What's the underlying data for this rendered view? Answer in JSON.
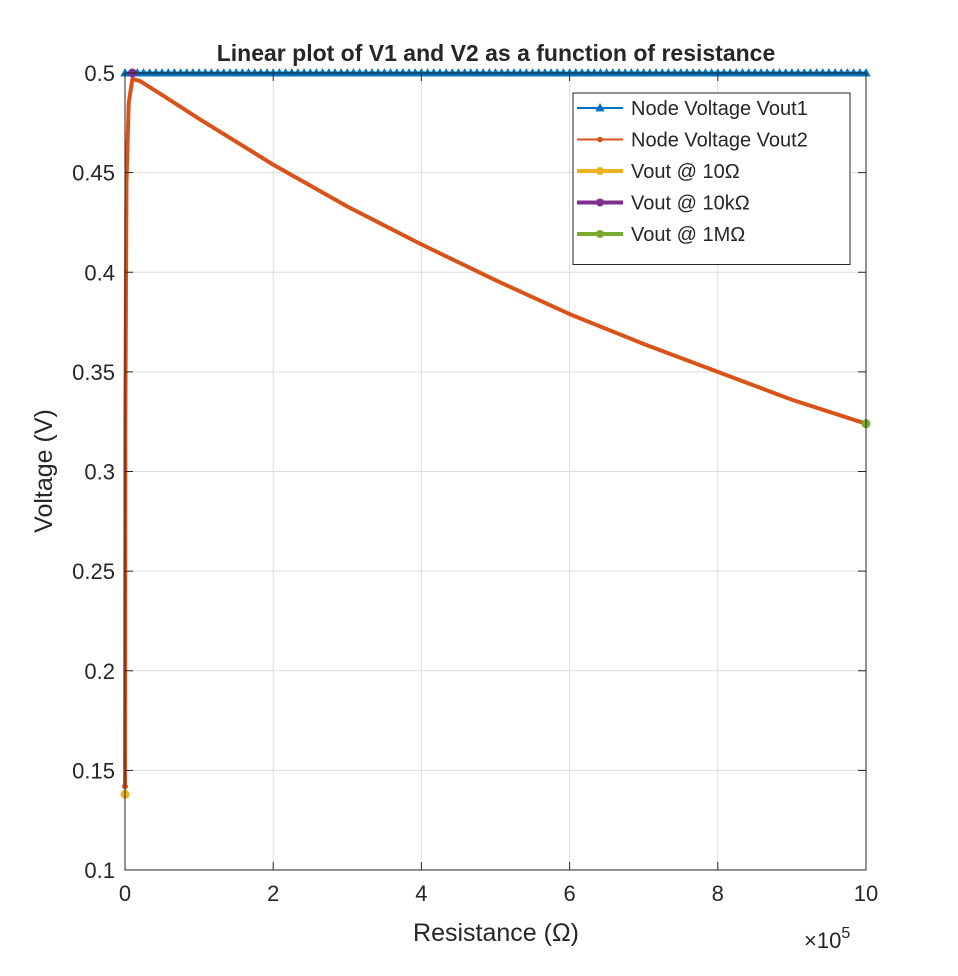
{
  "chart_data": {
    "type": "line",
    "title": "Linear plot of V1 and V2 as a function of resistance",
    "xlabel": "Resistance (Ω)",
    "ylabel": "Voltage (V)",
    "x_exponent_label": "×10",
    "x_exponent_power": "5",
    "x_scale_factor": 100000,
    "xlim": [
      0,
      1000000
    ],
    "ylim": [
      0.1,
      0.5
    ],
    "x_ticks": [
      0,
      200000,
      400000,
      600000,
      800000,
      1000000
    ],
    "x_tick_labels": [
      "0",
      "2",
      "4",
      "6",
      "8",
      "10"
    ],
    "y_ticks": [
      0.1,
      0.15,
      0.2,
      0.25,
      0.3,
      0.35,
      0.4,
      0.45,
      0.5
    ],
    "y_tick_labels": [
      "0.1",
      "0.15",
      "0.2",
      "0.25",
      "0.3",
      "0.35",
      "0.4",
      "0.45",
      "0.5"
    ],
    "grid": true,
    "legend_position": "top-right",
    "series": [
      {
        "name": "Node Voltage Vout1",
        "color": "#0072BD",
        "marker": "triangle",
        "line_width": 1.5,
        "x": [
          0,
          10,
          10000,
          1000000
        ],
        "y": [
          0.5,
          0.5,
          0.5,
          0.5
        ]
      },
      {
        "name": "Node Voltage Vout2",
        "color": "#D95319",
        "marker": "dot",
        "line_width": 4,
        "x": [
          10,
          500,
          2000,
          5000,
          10000,
          20000,
          50000,
          100000,
          200000,
          300000,
          400000,
          500000,
          600000,
          700000,
          800000,
          900000,
          1000000
        ],
        "y": [
          0.142,
          0.325,
          0.445,
          0.485,
          0.497,
          0.496,
          0.489,
          0.477,
          0.454,
          0.433,
          0.414,
          0.396,
          0.379,
          0.364,
          0.35,
          0.336,
          0.324
        ]
      },
      {
        "name": "Vout @ 10Ω",
        "color": "#EDB120",
        "marker": "dot",
        "line_width": 4,
        "x": [
          10
        ],
        "y": [
          0.138
        ]
      },
      {
        "name": "Vout @ 10kΩ",
        "color": "#7E2F8E",
        "marker": "dot",
        "line_width": 4,
        "x": [
          10000
        ],
        "y": [
          0.5
        ]
      },
      {
        "name": "Vout @ 1MΩ",
        "color": "#77AC30",
        "marker": "dot",
        "line_width": 4,
        "x": [
          1000000
        ],
        "y": [
          0.324
        ]
      }
    ]
  }
}
